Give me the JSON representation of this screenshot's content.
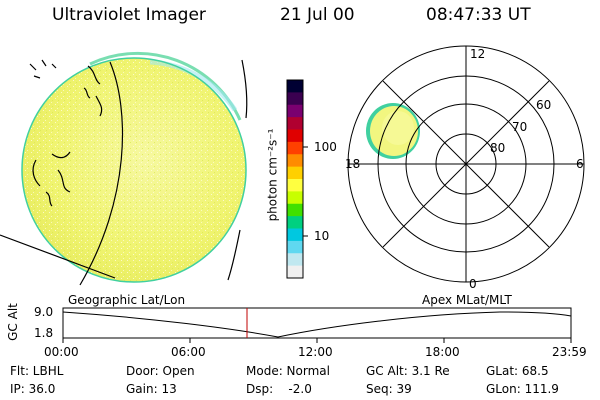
{
  "header": {
    "instrument": "Ultraviolet Imager",
    "date": "21 Jul 00",
    "time": "08:47:33 UT"
  },
  "colorbar": {
    "tick_high": "100",
    "tick_low": "10",
    "unit_label": "photon cm⁻²s⁻¹",
    "colors": [
      "#000033",
      "#3a0050",
      "#7a0070",
      "#b00030",
      "#e00000",
      "#ff4000",
      "#ff8c00",
      "#ffd000",
      "#ffff40",
      "#c8ff00",
      "#40e000",
      "#00d080",
      "#00c8e0",
      "#60d8f0",
      "#c0e8f0",
      "#f0f0f0"
    ]
  },
  "polar": {
    "mlt_labels": [
      "12",
      "18",
      "6",
      "0"
    ],
    "lat_labels": [
      "60",
      "70",
      "80"
    ]
  },
  "timeline": {
    "left_label": "Geographic Lat/Lon",
    "right_label": "Apex MLat/MLT",
    "axis_title": "GC Alt",
    "y_ticks": [
      "9.0",
      "1.8"
    ],
    "x_ticks": [
      "00:00",
      "06:00",
      "12:00",
      "18:00",
      "23:59"
    ],
    "marker_time": "08:47"
  },
  "status": {
    "filter": "Flt: LBHL",
    "door": "Door: Open",
    "mode": "Mode: Normal",
    "gc_alt": "GC Alt: 3.1 Re",
    "glat": "GLat: 68.5",
    "ip": "IP: 36.0",
    "gain": "Gain: 13",
    "dsp": "Dsp:    -2.0",
    "seq": "Seq: 39",
    "glon": "GLon: 111.9"
  }
}
